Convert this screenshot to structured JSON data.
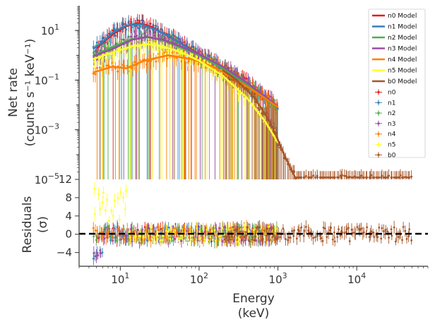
{
  "chart_data": [
    {
      "type": "scatter",
      "panel": "spectrum",
      "ylabel_line1": "Net rate",
      "ylabel_line2": "(counts s⁻¹ keV⁻¹)",
      "xscale": "log",
      "yscale": "log",
      "xlim": [
        3,
        80000
      ],
      "ylim": [
        1e-05,
        100
      ],
      "yticks": [
        {
          "value": 10,
          "base": "10",
          "exp": "1"
        },
        {
          "value": 0.1,
          "base": "10",
          "exp": "−1"
        },
        {
          "value": 0.001,
          "base": "10",
          "exp": "−3"
        },
        {
          "value": 1e-05,
          "base": "10",
          "exp": "−5"
        }
      ],
      "legend_position": "top-right",
      "models": [
        {
          "name": "n0 Model",
          "color": "#e41a1c",
          "points": [
            [
              5,
              2
            ],
            [
              8,
              7
            ],
            [
              12,
              15
            ],
            [
              17,
              20
            ],
            [
              25,
              14
            ],
            [
              40,
              6
            ],
            [
              70,
              2.2
            ],
            [
              120,
              0.8
            ],
            [
              200,
              0.3
            ],
            [
              400,
              0.08
            ],
            [
              800,
              0.015
            ],
            [
              1000,
              0.008
            ]
          ]
        },
        {
          "name": "n1 Model",
          "color": "#377eb8",
          "points": [
            [
              4.5,
              1.8
            ],
            [
              6,
              3.5
            ],
            [
              8,
              8
            ],
            [
              12,
              16
            ],
            [
              18,
              18
            ],
            [
              28,
              11
            ],
            [
              45,
              5
            ],
            [
              80,
              1.6
            ],
            [
              150,
              0.5
            ],
            [
              300,
              0.12
            ],
            [
              600,
              0.025
            ],
            [
              1000,
              0.007
            ]
          ]
        },
        {
          "name": "n2 Model",
          "color": "#4daf4a",
          "points": [
            [
              4.5,
              1
            ],
            [
              8,
              2.2
            ],
            [
              14,
              4.5
            ],
            [
              22,
              5.5
            ],
            [
              35,
              4
            ],
            [
              60,
              2
            ],
            [
              100,
              1
            ],
            [
              200,
              0.3
            ],
            [
              400,
              0.07
            ],
            [
              800,
              0.012
            ],
            [
              1000,
              0.006
            ]
          ]
        },
        {
          "name": "n3 Model",
          "color": "#984ea3",
          "points": [
            [
              4.5,
              0.9
            ],
            [
              8,
              1.8
            ],
            [
              14,
              4.2
            ],
            [
              22,
              5.5
            ],
            [
              35,
              4.2
            ],
            [
              60,
              2.2
            ],
            [
              100,
              1.1
            ],
            [
              200,
              0.35
            ],
            [
              400,
              0.08
            ],
            [
              800,
              0.015
            ],
            [
              1000,
              0.007
            ]
          ]
        },
        {
          "name": "n4 Model",
          "color": "#ff7f00",
          "points": [
            [
              4.5,
              0.2
            ],
            [
              8,
              0.35
            ],
            [
              12,
              0.3
            ],
            [
              20,
              0.6
            ],
            [
              40,
              1
            ],
            [
              80,
              0.7
            ],
            [
              150,
              0.35
            ],
            [
              300,
              0.1
            ],
            [
              600,
              0.025
            ],
            [
              1000,
              0.008
            ]
          ]
        },
        {
          "name": "n5 Model",
          "color": "#ffff33",
          "points": [
            [
              4.5,
              0.7
            ],
            [
              8,
              1.3
            ],
            [
              14,
              2.3
            ],
            [
              22,
              2.8
            ],
            [
              35,
              2.3
            ],
            [
              60,
              1.3
            ],
            [
              100,
              0.6
            ],
            [
              200,
              0.15
            ],
            [
              400,
              0.02
            ],
            [
              700,
              0.002
            ],
            [
              1000,
              0.0003
            ]
          ]
        },
        {
          "name": "b0 Model",
          "color": "#a65628",
          "points": [
            [
              200,
              0.25
            ],
            [
              300,
              0.1
            ],
            [
              500,
              0.02
            ],
            [
              800,
              0.002
            ],
            [
              1200,
              0.0001
            ],
            [
              1700,
              1e-05
            ]
          ]
        }
      ],
      "data_series": [
        {
          "name": "n0",
          "color": "#e41a1c",
          "xmin": 5,
          "xmax": 1000
        },
        {
          "name": "n1",
          "color": "#377eb8",
          "xmin": 4.5,
          "xmax": 1000
        },
        {
          "name": "n2",
          "color": "#4daf4a",
          "xmin": 4.5,
          "xmax": 1000
        },
        {
          "name": "n3",
          "color": "#984ea3",
          "xmin": 4.5,
          "xmax": 1000
        },
        {
          "name": "n4",
          "color": "#ff7f00",
          "xmin": 4.5,
          "xmax": 1000
        },
        {
          "name": "n5",
          "color": "#ffff33",
          "xmin": 4.5,
          "xmax": 1000
        },
        {
          "name": "b0",
          "color": "#a65628",
          "xmin": 200,
          "xmax": 50000
        }
      ]
    },
    {
      "type": "scatter",
      "panel": "residuals",
      "xlabel_line1": "Energy",
      "xlabel_line2": "(keV)",
      "ylabel_line1": "Residuals",
      "ylabel_line2": "(σ)",
      "xscale": "log",
      "xlim": [
        3,
        80000
      ],
      "ylim": [
        -7,
        12
      ],
      "yticks": [
        "12",
        "8",
        "4",
        "0",
        "−4"
      ],
      "ytick_values": [
        12,
        8,
        4,
        0,
        -4
      ],
      "xticks": [
        {
          "value": 10,
          "base": "10",
          "exp": "1"
        },
        {
          "value": 100,
          "base": "10",
          "exp": "2"
        },
        {
          "value": 1000,
          "base": "10",
          "exp": "3"
        },
        {
          "value": 10000,
          "base": "10",
          "exp": "4"
        }
      ],
      "zero_line": {
        "value": 0,
        "style": "dashed",
        "color": "#000000"
      }
    }
  ]
}
